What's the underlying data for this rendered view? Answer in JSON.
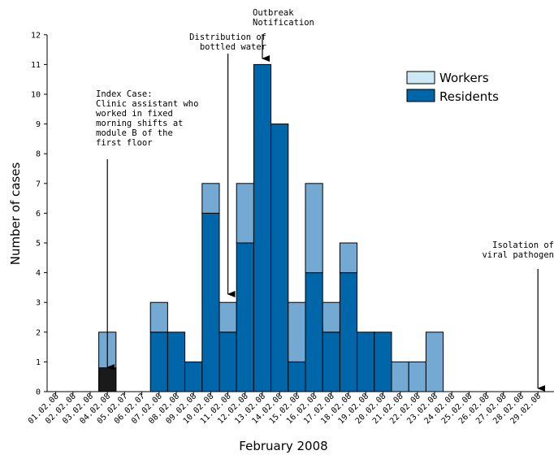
{
  "chart_data": {
    "type": "bar",
    "stacked": true,
    "xlabel": "February 2008",
    "ylabel": "Number of cases",
    "ylim": [
      0,
      12
    ],
    "yticks": [
      0,
      1,
      2,
      3,
      4,
      5,
      6,
      7,
      8,
      9,
      10,
      11,
      12
    ],
    "grid": false,
    "legend_position": "top-right",
    "categories": [
      "01.02.08",
      "02.02.08",
      "03.02.08",
      "04.02.08",
      "05.02.07",
      "06.02.07",
      "07.02.08",
      "08.02.08",
      "09.02.08",
      "10.02.08",
      "11.02.08",
      "12.02.08",
      "13.02.08",
      "14.02.08",
      "15.02.08",
      "16.02.08",
      "17.02.08",
      "18.02.08",
      "19.02.08",
      "20.02.08",
      "21.02.08",
      "22.02.08",
      "23.02.08",
      "24.02.08",
      "25.02.08",
      "26.02.08",
      "27.02.08",
      "28.02.08",
      "29.02.08"
    ],
    "series": [
      {
        "name": "Residents",
        "color": "#0066aa",
        "values": [
          0,
          0,
          0,
          0,
          0,
          0,
          2,
          2,
          1,
          6,
          2,
          5,
          11,
          9,
          1,
          4,
          2,
          4,
          2,
          2,
          0,
          0,
          0,
          0,
          0,
          0,
          0,
          0,
          0
        ]
      },
      {
        "name": "Workers",
        "color": "#74a9d4",
        "values": [
          0,
          0,
          0,
          2,
          0,
          0,
          1,
          0,
          0,
          1,
          1,
          2,
          0,
          0,
          2,
          3,
          1,
          1,
          0,
          0,
          1,
          1,
          2,
          0,
          0,
          0,
          0,
          0,
          0
        ]
      }
    ],
    "legend_entries": [
      {
        "label": "Workers",
        "color": "#cce8f4"
      },
      {
        "label": "Residents",
        "color": "#0066aa"
      }
    ],
    "index_case": {
      "category": "04.02.08",
      "value": 0.8,
      "color": "#1a1a1a"
    },
    "annotations": [
      {
        "lines": [
          "Outbreak",
          "Notification"
        ],
        "category": "13.02.08",
        "align": "start",
        "arrow_to": 11
      },
      {
        "lines": [
          "Distribution of",
          "bottled water"
        ],
        "category": "11.02.08",
        "align": "end",
        "arrow_to": 3
      },
      {
        "lines": [
          "Index Case:",
          "Clinic assistant who",
          "worked in fixed",
          "morning shifts at",
          "module B of the",
          "first floor"
        ],
        "category": "04.02.08",
        "align": "start",
        "arrow_to": 0.8
      },
      {
        "lines": [
          "Isolation of",
          "viral pathogen"
        ],
        "category": "29.02.08",
        "align": "end",
        "arrow_to": 0
      }
    ]
  }
}
